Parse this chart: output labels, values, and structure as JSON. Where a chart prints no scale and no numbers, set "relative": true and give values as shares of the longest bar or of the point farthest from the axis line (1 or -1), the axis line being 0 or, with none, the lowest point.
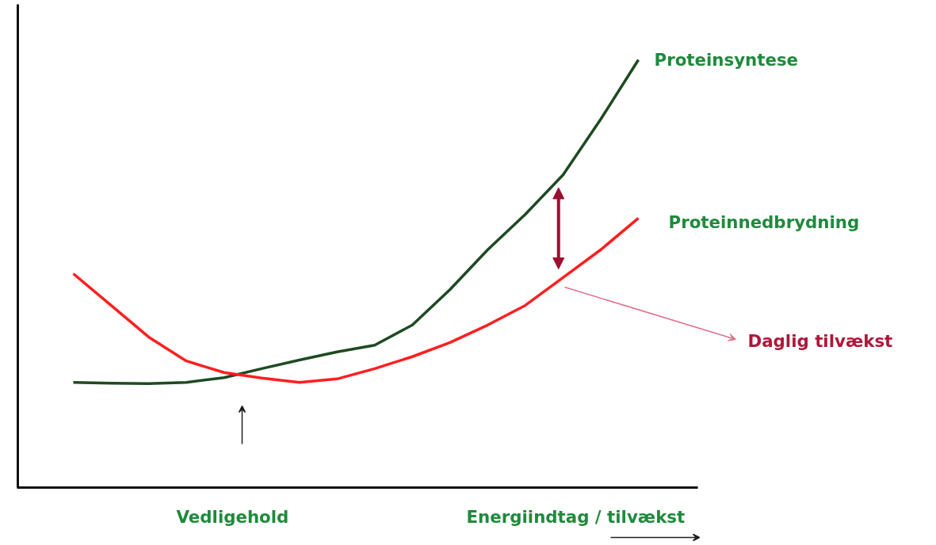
{
  "chart_data": {
    "type": "line",
    "relative": true,
    "xlabel": "Energiindtag / tilvækst",
    "categories": [
      null,
      null,
      null,
      null,
      null,
      null,
      null,
      null,
      null,
      null,
      null,
      null,
      null,
      null,
      null,
      null
    ],
    "series": [
      {
        "name": "Proteinsyntese",
        "color": "#1e4a22",
        "values": [
          0.246,
          0.244,
          0.243,
          0.246,
          0.257,
          0.278,
          0.298,
          0.317,
          0.333,
          0.38,
          0.463,
          0.556,
          0.639,
          0.731,
          0.861,
          1
        ]
      },
      {
        "name": "Proteinnedbrydning",
        "color": "#ff1f1f",
        "values": [
          0.5,
          0.426,
          0.352,
          0.296,
          0.269,
          0.256,
          0.246,
          0.254,
          0.278,
          0.306,
          0.339,
          0.38,
          0.426,
          0.491,
          0.556,
          0.63
        ]
      }
    ],
    "annotations": [
      "Vedligehold",
      "Daglig tilvækst"
    ],
    "legend": false,
    "marker": "none",
    "line_style": "solid"
  }
}
